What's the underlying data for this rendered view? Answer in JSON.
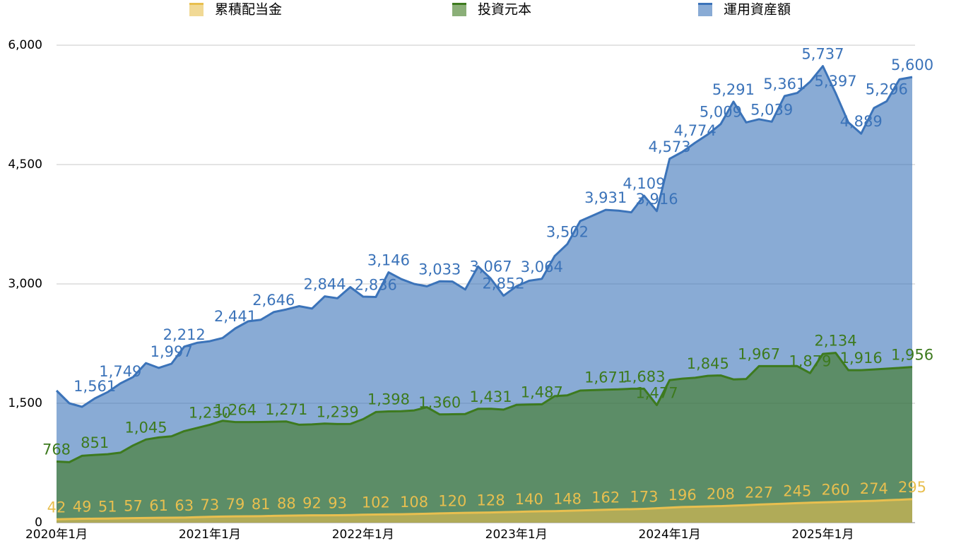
{
  "chart_data": {
    "type": "area",
    "categories": [
      "2020年1月",
      null,
      null,
      null,
      null,
      null,
      null,
      null,
      null,
      null,
      null,
      null,
      "2021年1月",
      null,
      null,
      null,
      null,
      null,
      null,
      null,
      null,
      null,
      null,
      null,
      "2022年1月",
      null,
      null,
      null,
      null,
      null,
      null,
      null,
      null,
      null,
      null,
      null,
      "2023年1月",
      null,
      null,
      null,
      null,
      null,
      null,
      null,
      null,
      null,
      null,
      null,
      "2024年1月",
      null,
      null,
      null,
      null,
      null,
      null,
      null,
      null,
      null,
      null,
      null,
      "2025年1月",
      null,
      null,
      null,
      null,
      null,
      null,
      null
    ],
    "ylim": [
      0,
      6000
    ],
    "yticks": [
      0,
      {
        "value": 1500,
        "label": "1,500"
      },
      {
        "value": 3000,
        "label": "3,000"
      },
      {
        "value": 4500,
        "label": "4,500"
      },
      {
        "value": 6000,
        "label": "6,000"
      }
    ],
    "grid": true,
    "legend": "top",
    "series": [
      {
        "name": "累積配当金",
        "color": "#e8bf4f",
        "values": [
          42,
          45,
          49,
          50,
          51,
          54,
          57,
          59,
          61,
          62,
          63,
          68,
          73,
          76,
          79,
          80,
          81,
          85,
          88,
          90,
          92,
          92,
          93,
          96,
          99,
          102,
          104,
          106,
          108,
          112,
          116,
          120,
          123,
          125,
          128,
          132,
          136,
          140,
          143,
          145,
          148,
          153,
          157,
          162,
          166,
          169,
          173,
          181,
          188,
          196,
          200,
          204,
          208,
          214,
          220,
          227,
          233,
          239,
          245,
          250,
          255,
          260,
          265,
          270,
          274,
          281,
          288,
          295
        ],
        "value_labels": [
          "42",
          null,
          "49",
          null,
          "51",
          null,
          "57",
          null,
          "61",
          null,
          "63",
          null,
          "73",
          null,
          "79",
          null,
          "81",
          null,
          "88",
          null,
          "92",
          null,
          "93",
          null,
          null,
          "102",
          null,
          null,
          "108",
          null,
          null,
          "120",
          null,
          null,
          "128",
          null,
          null,
          "140",
          null,
          null,
          "148",
          null,
          null,
          "162",
          null,
          null,
          "173",
          null,
          null,
          "196",
          null,
          null,
          "208",
          null,
          null,
          "227",
          null,
          null,
          "245",
          null,
          null,
          "260",
          null,
          null,
          "274",
          null,
          null,
          "295"
        ]
      },
      {
        "name": "投資元本",
        "color": "#3d7a1e",
        "values": [
          768,
          760,
          840,
          851,
          860,
          880,
          970,
          1045,
          1070,
          1085,
          1150,
          1190,
          1230,
          1280,
          1264,
          1264,
          1265,
          1268,
          1271,
          1230,
          1235,
          1245,
          1239,
          1240,
          1300,
          1390,
          1398,
          1400,
          1410,
          1450,
          1360,
          1362,
          1365,
          1430,
          1431,
          1420,
          1480,
          1485,
          1487,
          1590,
          1600,
          1660,
          1665,
          1671,
          1675,
          1683,
          1683,
          1477,
          1790,
          1810,
          1820,
          1845,
          1850,
          1800,
          1805,
          1967,
          1967,
          1967,
          1967,
          1879,
          2120,
          2134,
          1916,
          1916,
          1925,
          1935,
          1945,
          1956
        ],
        "value_labels": [
          "768",
          null,
          null,
          "851",
          null,
          null,
          null,
          "1,045",
          null,
          null,
          null,
          null,
          "1,230",
          null,
          "1,264",
          null,
          null,
          null,
          "1,271",
          null,
          null,
          null,
          "1,239",
          null,
          null,
          null,
          "1,398",
          null,
          null,
          null,
          "1,360",
          null,
          null,
          null,
          "1,431",
          null,
          null,
          null,
          "1,487",
          null,
          null,
          null,
          null,
          "1,671",
          null,
          null,
          "1,683",
          "1,477",
          null,
          null,
          null,
          "1,845",
          null,
          null,
          null,
          "1,967",
          null,
          null,
          null,
          "1,879",
          null,
          "2,134",
          null,
          "1,916",
          null,
          null,
          null,
          "1,956"
        ]
      },
      {
        "name": "運用資産額",
        "color": "#3b73b9",
        "values": [
          1660,
          1500,
          1456,
          1561,
          1640,
          1749,
          1830,
          2005,
          1945,
          1997,
          2212,
          2260,
          2280,
          2320,
          2441,
          2530,
          2550,
          2646,
          2680,
          2720,
          2690,
          2844,
          2820,
          2960,
          2840,
          2836,
          3146,
          3060,
          3000,
          2970,
          3033,
          3030,
          2930,
          3220,
          3067,
          2852,
          2970,
          3040,
          3064,
          3350,
          3502,
          3790,
          3860,
          3931,
          3920,
          3900,
          4109,
          3916,
          4573,
          4660,
          4774,
          4880,
          5009,
          5291,
          5030,
          5070,
          5039,
          5361,
          5400,
          5540,
          5737,
          5397,
          5030,
          4889,
          5210,
          5296,
          5570,
          5600
        ],
        "value_labels": [
          null,
          null,
          null,
          "1,561",
          null,
          "1,749",
          null,
          null,
          null,
          "1,997",
          "2,212",
          null,
          null,
          null,
          "2,441",
          null,
          null,
          "2,646",
          null,
          null,
          null,
          "2,844",
          null,
          null,
          null,
          "2,836",
          "3,146",
          null,
          null,
          null,
          "3,033",
          null,
          null,
          null,
          "3,067",
          "2,852",
          null,
          null,
          "3,064",
          null,
          "3,502",
          null,
          null,
          "3,931",
          null,
          null,
          "4,109",
          "3,916",
          "4,573",
          null,
          "4,774",
          null,
          "5,009",
          "5,291",
          null,
          null,
          "5,039",
          "5,361",
          null,
          null,
          "5,737",
          "5,397",
          null,
          "4,889",
          null,
          "5,296",
          null,
          "5,600"
        ]
      }
    ]
  }
}
